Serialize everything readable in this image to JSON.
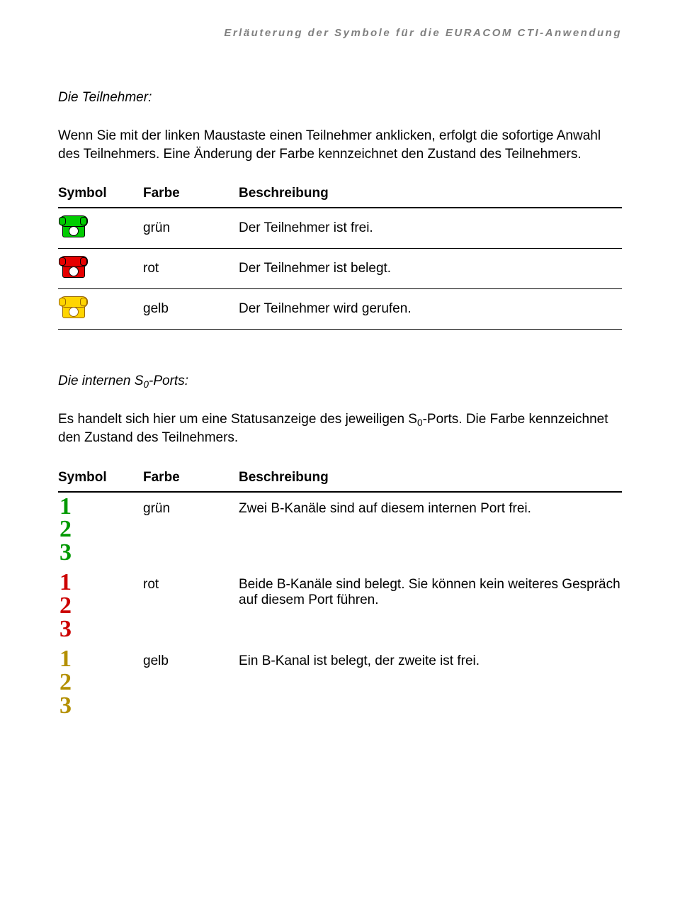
{
  "header": "Erläuterung der Symbole für die EURACOM CTI-Anwendung",
  "colors": {
    "green": "#00cc00",
    "red": "#e60000",
    "yellow": "#ffd500",
    "yellow_border": "#996600"
  },
  "section1": {
    "title": "Die Teilnehmer:",
    "para": "Wenn Sie mit der linken Maustaste einen Teilnehmer anklicken, erfolgt die sofortige Anwahl des Teilnehmers. Eine Änderung der Farbe kennzeichnet den Zustand des Teilnehmers.",
    "head_sym": "Symbol",
    "head_farbe": "Farbe",
    "head_desc": "Beschreibung",
    "rows": [
      {
        "farbe": "grün",
        "desc": "Der Teilnehmer ist frei.",
        "fill": "#00cc00",
        "border": "#000"
      },
      {
        "farbe": "rot",
        "desc": "Der Teilnehmer ist belegt.",
        "fill": "#e60000",
        "border": "#000"
      },
      {
        "farbe": "gelb",
        "desc": "Der Teilnehmer wird gerufen.",
        "fill": "#ffd500",
        "border": "#996600"
      }
    ]
  },
  "section2": {
    "title_pre": "Die internen S",
    "title_sub": "0",
    "title_post": "-Ports:",
    "para_pre": "Es handelt sich hier um eine Statusanzeige des jeweiligen S",
    "para_sub": "0",
    "para_post": "-Ports. Die Farbe kennzeichnet den Zustand des Teilnehmers.",
    "head_sym": "Symbol",
    "head_farbe": "Farbe",
    "head_desc": "Beschreibung",
    "rows": [
      {
        "nums": [
          "1",
          "2",
          "3"
        ],
        "color": "#009900",
        "farbe": "grün",
        "desc": "Zwei B-Kanäle sind auf diesem internen Port frei."
      },
      {
        "nums": [
          "1",
          "2",
          "3"
        ],
        "color": "#cc0000",
        "farbe": "rot",
        "desc": "Beide B-Kanäle sind belegt. Sie können kein weiteres Gespräch auf diesem Port führen."
      },
      {
        "nums": [
          "1",
          "2",
          "3"
        ],
        "color": "#b38f00",
        "farbe": "gelb",
        "desc": "Ein B-Kanal ist belegt, der zweite ist frei."
      }
    ]
  }
}
